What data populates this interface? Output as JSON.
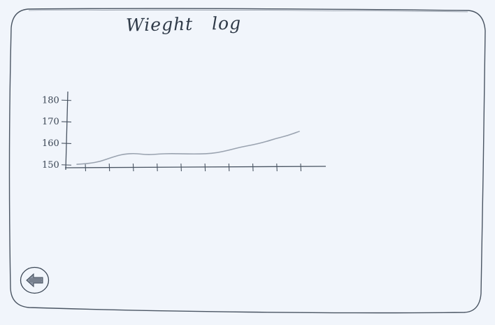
{
  "screen": {
    "title": "Wieght   log"
  },
  "chart_data": {
    "type": "line",
    "title": "Wieght   log",
    "xlabel": "",
    "ylabel": "",
    "ylim": [
      147,
      183
    ],
    "y_ticks": [
      150,
      160,
      170,
      180
    ],
    "y_tick_labels": [
      "150",
      "160",
      "170",
      "180"
    ],
    "x_tick_count": 10,
    "grid": false,
    "series": [
      {
        "values": [
          150.2,
          150.6,
          151.5,
          153.5,
          155.0,
          155.3,
          154.6,
          155.0,
          155.2,
          155.1,
          155.0,
          155.1,
          155.6,
          156.8,
          158.2,
          159.2,
          160.5,
          162.2,
          163.5,
          165.5
        ],
        "color": "#9aa3b0"
      }
    ]
  },
  "back_button": {
    "icon": "back-arrow-icon"
  },
  "colors": {
    "background": "#f1f5fb",
    "ink": "#3b4655",
    "line": "#9aa3b0"
  }
}
